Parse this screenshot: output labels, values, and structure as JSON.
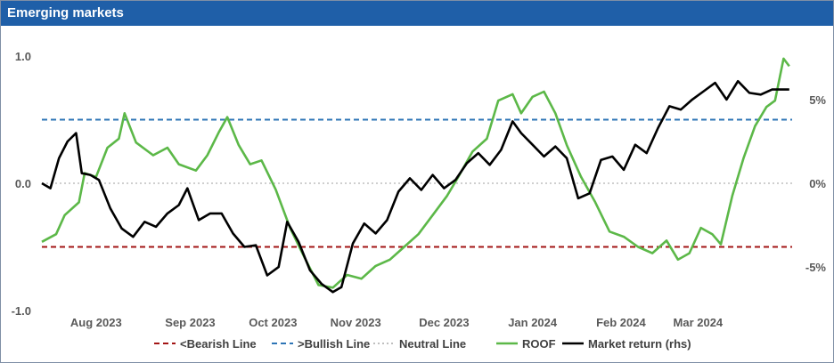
{
  "title": "Emerging markets",
  "chart_data": {
    "type": "line",
    "y_left": {
      "ticks": [
        "1.0",
        "0.0",
        "-1.0"
      ],
      "range": [
        -1.0,
        1.0
      ]
    },
    "y_right": {
      "ticks": [
        "5%",
        "0%",
        "-5%"
      ],
      "range": [
        -7.6,
        7.6
      ]
    },
    "x_ticks": [
      "Aug 2023",
      "Sep 2023",
      "Oct 2023",
      "Nov 2023",
      "Dec 2023",
      "Jan 2024",
      "Feb 2024",
      "Mar 2024"
    ],
    "reference_lines": [
      {
        "name": "<Bearish Line",
        "value": -0.5,
        "color": "#a31515",
        "dash": "dashed"
      },
      {
        "name": ">Bullish Line",
        "value": 0.5,
        "color": "#2e75b6",
        "dash": "dashed"
      },
      {
        "name": "Neutral Line",
        "value": 0.0,
        "color": "#bfbfbf",
        "dash": "dotted"
      }
    ],
    "series": [
      {
        "name": "ROOF",
        "axis": "left",
        "color": "#5cb848",
        "points": [
          [
            "2023-07-20",
            -0.46
          ],
          [
            "2023-07-25",
            -0.4
          ],
          [
            "2023-07-28",
            -0.25
          ],
          [
            "2023-08-02",
            -0.15
          ],
          [
            "2023-08-04",
            0.08
          ],
          [
            "2023-08-08",
            0.05
          ],
          [
            "2023-08-12",
            0.28
          ],
          [
            "2023-08-16",
            0.35
          ],
          [
            "2023-08-18",
            0.55
          ],
          [
            "2023-08-22",
            0.32
          ],
          [
            "2023-08-28",
            0.22
          ],
          [
            "2023-09-02",
            0.28
          ],
          [
            "2023-09-06",
            0.15
          ],
          [
            "2023-09-12",
            0.1
          ],
          [
            "2023-09-16",
            0.22
          ],
          [
            "2023-09-20",
            0.4
          ],
          [
            "2023-09-23",
            0.52
          ],
          [
            "2023-09-27",
            0.3
          ],
          [
            "2023-10-01",
            0.15
          ],
          [
            "2023-10-05",
            0.18
          ],
          [
            "2023-10-10",
            -0.05
          ],
          [
            "2023-10-15",
            -0.35
          ],
          [
            "2023-10-20",
            -0.58
          ],
          [
            "2023-10-25",
            -0.8
          ],
          [
            "2023-10-30",
            -0.82
          ],
          [
            "2023-11-04",
            -0.72
          ],
          [
            "2023-11-09",
            -0.75
          ],
          [
            "2023-11-14",
            -0.65
          ],
          [
            "2023-11-19",
            -0.6
          ],
          [
            "2023-11-24",
            -0.5
          ],
          [
            "2023-11-29",
            -0.4
          ],
          [
            "2023-12-04",
            -0.25
          ],
          [
            "2023-12-09",
            -0.1
          ],
          [
            "2023-12-13",
            0.05
          ],
          [
            "2023-12-18",
            0.25
          ],
          [
            "2023-12-23",
            0.35
          ],
          [
            "2023-12-27",
            0.65
          ],
          [
            "2024-01-01",
            0.7
          ],
          [
            "2024-01-04",
            0.55
          ],
          [
            "2024-01-08",
            0.68
          ],
          [
            "2024-01-12",
            0.72
          ],
          [
            "2024-01-16",
            0.55
          ],
          [
            "2024-01-20",
            0.3
          ],
          [
            "2024-01-25",
            0.05
          ],
          [
            "2024-01-30",
            -0.15
          ],
          [
            "2024-02-04",
            -0.38
          ],
          [
            "2024-02-09",
            -0.42
          ],
          [
            "2024-02-14",
            -0.5
          ],
          [
            "2024-02-19",
            -0.55
          ],
          [
            "2024-02-24",
            -0.45
          ],
          [
            "2024-02-28",
            -0.6
          ],
          [
            "2024-03-03",
            -0.55
          ],
          [
            "2024-03-07",
            -0.35
          ],
          [
            "2024-03-11",
            -0.4
          ],
          [
            "2024-03-14",
            -0.48
          ],
          [
            "2024-03-18",
            -0.1
          ],
          [
            "2024-03-22",
            0.2
          ],
          [
            "2024-03-26",
            0.45
          ],
          [
            "2024-03-30",
            0.6
          ],
          [
            "2024-04-02",
            0.65
          ],
          [
            "2024-04-05",
            0.98
          ],
          [
            "2024-04-07",
            0.92
          ]
        ]
      },
      {
        "name": "Market return (rhs)",
        "axis": "right",
        "color": "#000000",
        "points": [
          [
            "2023-07-20",
            0.0
          ],
          [
            "2023-07-23",
            -0.3
          ],
          [
            "2023-07-26",
            1.5
          ],
          [
            "2023-07-29",
            2.5
          ],
          [
            "2023-08-01",
            3.0
          ],
          [
            "2023-08-03",
            0.6
          ],
          [
            "2023-08-06",
            0.5
          ],
          [
            "2023-08-09",
            0.2
          ],
          [
            "2023-08-13",
            -1.5
          ],
          [
            "2023-08-17",
            -2.7
          ],
          [
            "2023-08-21",
            -3.2
          ],
          [
            "2023-08-25",
            -2.3
          ],
          [
            "2023-08-29",
            -2.6
          ],
          [
            "2023-09-02",
            -1.8
          ],
          [
            "2023-09-06",
            -1.3
          ],
          [
            "2023-09-09",
            -0.3
          ],
          [
            "2023-09-13",
            -2.2
          ],
          [
            "2023-09-17",
            -1.8
          ],
          [
            "2023-09-21",
            -1.8
          ],
          [
            "2023-09-25",
            -3.0
          ],
          [
            "2023-09-29",
            -3.8
          ],
          [
            "2023-10-03",
            -3.7
          ],
          [
            "2023-10-07",
            -5.5
          ],
          [
            "2023-10-11",
            -5.0
          ],
          [
            "2023-10-14",
            -2.3
          ],
          [
            "2023-10-18",
            -3.5
          ],
          [
            "2023-10-22",
            -5.2
          ],
          [
            "2023-10-26",
            -6.0
          ],
          [
            "2023-10-30",
            -6.5
          ],
          [
            "2023-11-02",
            -6.2
          ],
          [
            "2023-11-06",
            -3.6
          ],
          [
            "2023-11-10",
            -2.4
          ],
          [
            "2023-11-14",
            -3.0
          ],
          [
            "2023-11-18",
            -2.2
          ],
          [
            "2023-11-22",
            -0.5
          ],
          [
            "2023-11-26",
            0.3
          ],
          [
            "2023-11-30",
            -0.4
          ],
          [
            "2023-12-04",
            0.5
          ],
          [
            "2023-12-08",
            -0.3
          ],
          [
            "2023-12-12",
            0.2
          ],
          [
            "2023-12-16",
            1.2
          ],
          [
            "2023-12-20",
            1.8
          ],
          [
            "2023-12-24",
            1.1
          ],
          [
            "2023-12-28",
            2.0
          ],
          [
            "2024-01-01",
            3.7
          ],
          [
            "2024-01-04",
            3.0
          ],
          [
            "2024-01-08",
            2.3
          ],
          [
            "2024-01-12",
            1.6
          ],
          [
            "2024-01-16",
            2.2
          ],
          [
            "2024-01-20",
            1.5
          ],
          [
            "2024-01-24",
            -0.9
          ],
          [
            "2024-01-28",
            -0.6
          ],
          [
            "2024-02-01",
            1.4
          ],
          [
            "2024-02-05",
            1.6
          ],
          [
            "2024-02-09",
            0.8
          ],
          [
            "2024-02-13",
            2.3
          ],
          [
            "2024-02-17",
            1.8
          ],
          [
            "2024-02-21",
            3.3
          ],
          [
            "2024-02-25",
            4.6
          ],
          [
            "2024-02-29",
            4.4
          ],
          [
            "2024-03-04",
            5.0
          ],
          [
            "2024-03-08",
            5.5
          ],
          [
            "2024-03-12",
            6.0
          ],
          [
            "2024-03-16",
            5.0
          ],
          [
            "2024-03-20",
            6.1
          ],
          [
            "2024-03-24",
            5.4
          ],
          [
            "2024-03-28",
            5.3
          ],
          [
            "2024-04-01",
            5.6
          ],
          [
            "2024-04-05",
            5.6
          ],
          [
            "2024-04-07",
            5.6
          ]
        ]
      }
    ],
    "legend": {
      "placement": "bottom"
    },
    "grid": false
  }
}
